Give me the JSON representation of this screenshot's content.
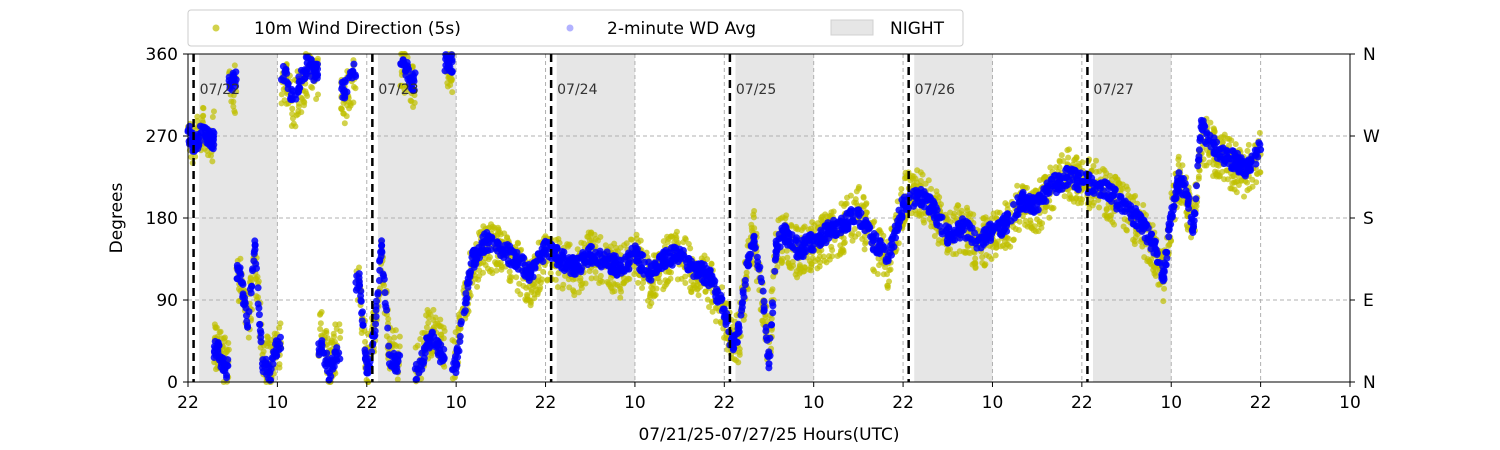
{
  "chart_data": {
    "type": "scatter",
    "title": "",
    "xlabel": "07/21/25-07/27/25  Hours(UTC)",
    "ylabel": "Degrees",
    "x_unit": "hours since 07/21/25 22:00 UTC",
    "xlim": [
      0,
      156
    ],
    "ylim": [
      0,
      360
    ],
    "x_ticks": [
      0,
      12,
      24,
      36,
      48,
      60,
      72,
      84,
      96,
      108,
      120,
      132,
      144,
      156
    ],
    "x_tick_labels": [
      "22",
      "10",
      "22",
      "10",
      "22",
      "10",
      "22",
      "10",
      "22",
      "10",
      "22",
      "10",
      "22",
      "10"
    ],
    "y_ticks": [
      0,
      90,
      180,
      270,
      360
    ],
    "y_tick_labels": [
      "0",
      "90",
      "180",
      "270",
      "360"
    ],
    "y2_ticks": [
      0,
      90,
      180,
      270,
      360
    ],
    "y2_tick_labels": [
      "N",
      "E",
      "S",
      "W",
      "N"
    ],
    "grid": true,
    "legend_position": "top, above plot",
    "legend": [
      {
        "label": "10m Wind Direction (5s)",
        "color": "#bfbf00",
        "marker": "circle"
      },
      {
        "label": "2-minute WD Avg",
        "color": "#0000ff",
        "marker": "circle"
      },
      {
        "label": "NIGHT",
        "color": "#e6e6e6",
        "marker": "patch"
      }
    ],
    "day_markers": [
      {
        "x": 0.75,
        "label": "07/22"
      },
      {
        "x": 24.75,
        "label": "07/23"
      },
      {
        "x": 48.75,
        "label": "07/24"
      },
      {
        "x": 72.75,
        "label": "07/25"
      },
      {
        "x": 96.75,
        "label": "07/26"
      },
      {
        "x": 120.75,
        "label": "07/27"
      }
    ],
    "night_bands": [
      [
        1.5,
        12
      ],
      [
        25.5,
        36
      ],
      [
        49.5,
        60
      ],
      [
        73.5,
        84
      ],
      [
        97.5,
        108
      ],
      [
        121.5,
        132
      ]
    ],
    "data_end_x": 144,
    "series": [
      {
        "name": "10m Wind Direction (5s)",
        "color": "#bfbf00",
        "spread": 28,
        "x": [
          0,
          1,
          2,
          3,
          4,
          5,
          6,
          7,
          8,
          9,
          10,
          11,
          12,
          13,
          14,
          15,
          16,
          17,
          18,
          19,
          20,
          21,
          22,
          23,
          24,
          25,
          26,
          27,
          28,
          29,
          30,
          31,
          32,
          33,
          34,
          35,
          36,
          38,
          40,
          42,
          44,
          46,
          48,
          50,
          52,
          54,
          56,
          58,
          60,
          62,
          64,
          66,
          68,
          70,
          72,
          73,
          74,
          75,
          76,
          77,
          78,
          79,
          80,
          82,
          84,
          86,
          88,
          90,
          92,
          94,
          96,
          98,
          100,
          102,
          104,
          106,
          108,
          110,
          112,
          114,
          116,
          118,
          120,
          122,
          124,
          126,
          128,
          130,
          131,
          132,
          133,
          134,
          135,
          136,
          138,
          140,
          142,
          144
        ],
        "values": [
          280,
          260,
          285,
          270,
          40,
          20,
          320,
          110,
          60,
          140,
          30,
          20,
          40,
          330,
          300,
          320,
          340,
          330,
          50,
          20,
          40,
          310,
          330,
          100,
          20,
          60,
          140,
          40,
          30,
          340,
          320,
          20,
          50,
          60,
          40,
          340,
          30,
          120,
          150,
          140,
          130,
          110,
          140,
          130,
          120,
          140,
          130,
          120,
          140,
          110,
          130,
          140,
          120,
          110,
          70,
          40,
          50,
          120,
          160,
          100,
          30,
          150,
          160,
          140,
          150,
          160,
          170,
          190,
          150,
          130,
          200,
          210,
          190,
          160,
          170,
          150,
          160,
          170,
          200,
          190,
          210,
          230,
          215,
          220,
          200,
          190,
          170,
          140,
          110,
          180,
          230,
          200,
          170,
          270,
          250,
          240,
          230,
          250
        ]
      },
      {
        "name": "2-minute WD Avg",
        "color": "#0000ff",
        "spread": 8,
        "x": [
          0,
          1,
          2,
          3,
          4,
          5,
          6,
          7,
          8,
          9,
          10,
          11,
          12,
          13,
          14,
          15,
          16,
          17,
          18,
          19,
          20,
          21,
          22,
          23,
          24,
          25,
          26,
          27,
          28,
          29,
          30,
          31,
          32,
          33,
          34,
          35,
          36,
          38,
          40,
          42,
          44,
          46,
          48,
          50,
          52,
          54,
          56,
          58,
          60,
          62,
          64,
          66,
          68,
          70,
          72,
          73,
          74,
          75,
          76,
          77,
          78,
          79,
          80,
          82,
          84,
          86,
          88,
          90,
          92,
          94,
          96,
          98,
          100,
          102,
          104,
          106,
          108,
          110,
          112,
          114,
          116,
          118,
          120,
          122,
          124,
          126,
          128,
          130,
          131,
          132,
          133,
          134,
          135,
          136,
          138,
          140,
          142,
          144
        ],
        "values": [
          275,
          255,
          280,
          265,
          35,
          15,
          330,
          120,
          60,
          150,
          20,
          10,
          40,
          340,
          310,
          330,
          350,
          340,
          40,
          10,
          30,
          320,
          340,
          110,
          10,
          50,
          150,
          30,
          20,
          350,
          330,
          10,
          40,
          50,
          30,
          350,
          20,
          130,
          155,
          145,
          135,
          120,
          145,
          135,
          125,
          140,
          135,
          125,
          140,
          120,
          135,
          140,
          125,
          115,
          80,
          40,
          55,
          130,
          160,
          110,
          20,
          150,
          165,
          145,
          155,
          165,
          175,
          185,
          155,
          135,
          195,
          205,
          190,
          160,
          170,
          155,
          165,
          175,
          200,
          195,
          215,
          225,
          220,
          215,
          205,
          190,
          175,
          145,
          115,
          185,
          220,
          210,
          170,
          280,
          255,
          245,
          235,
          255
        ]
      }
    ]
  }
}
